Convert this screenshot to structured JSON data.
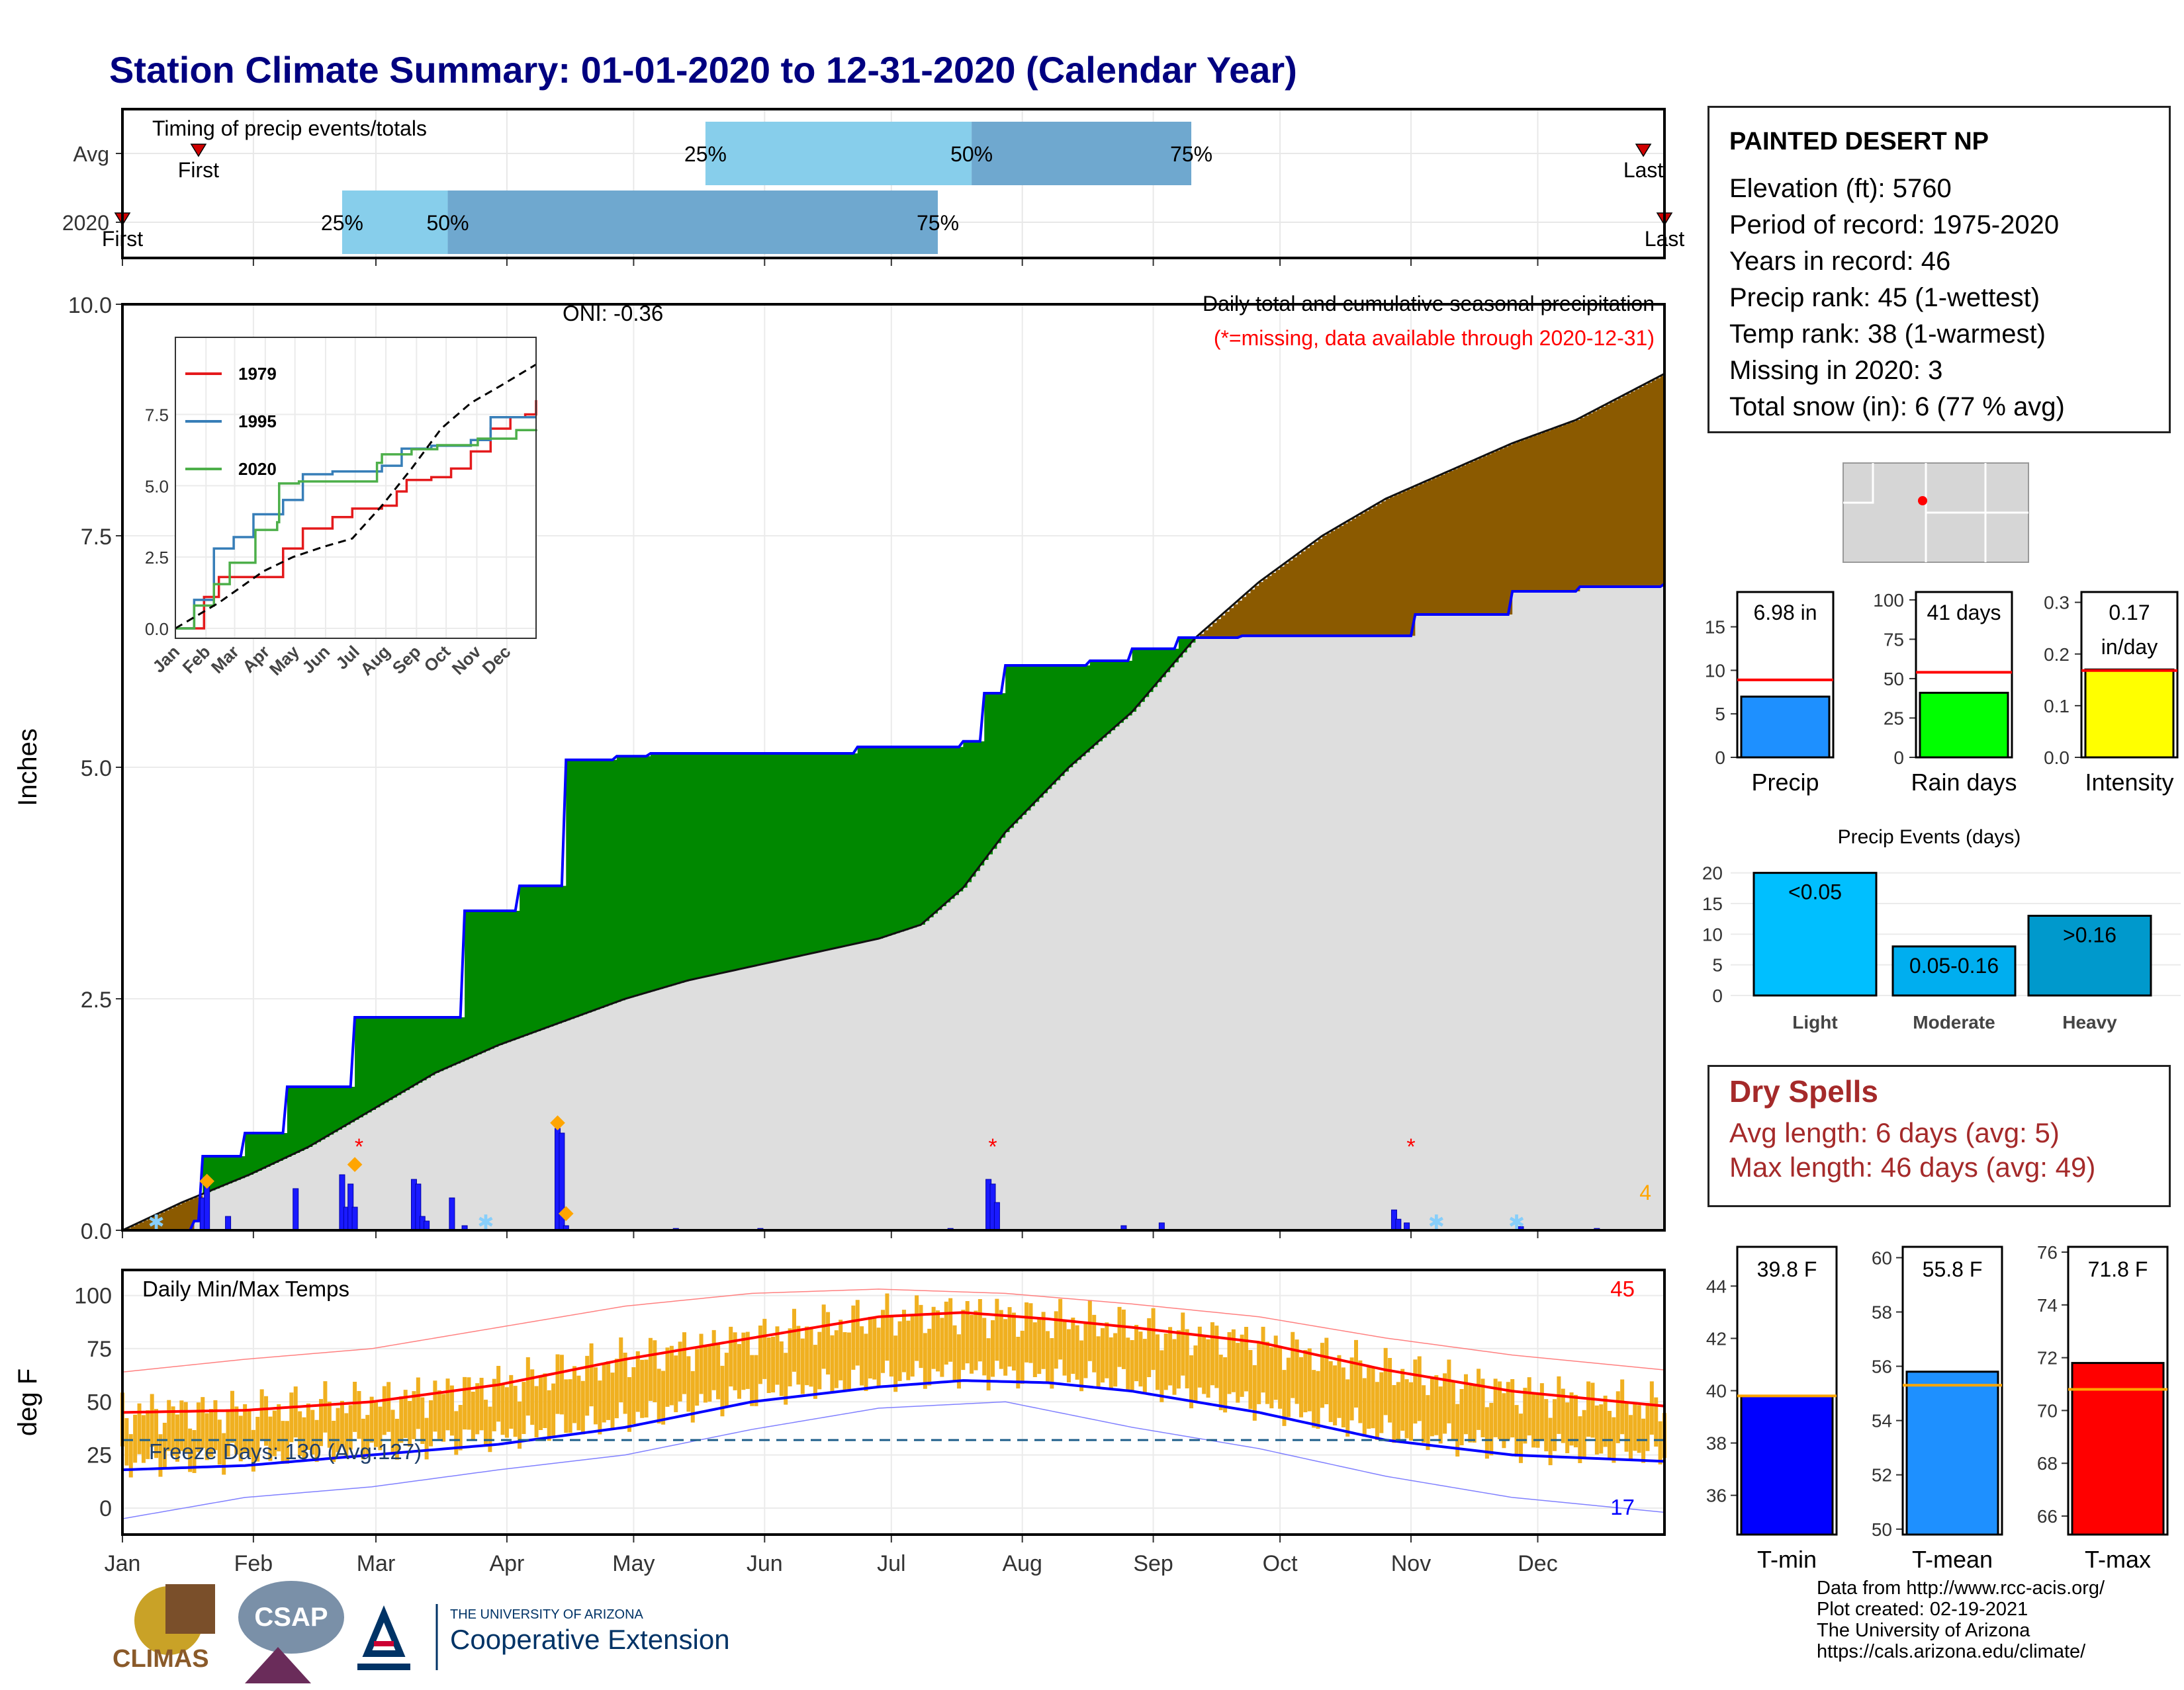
{
  "title": "Station Climate Summary: 01-01-2020 to 12-31-2020 (Calendar Year)",
  "timing": {
    "panel_title": "Timing of precip events/totals",
    "rows": [
      {
        "label": "Avg",
        "first_day": 19,
        "first_label": "First",
        "last_day": 361,
        "last_label": "Last",
        "p25": 139,
        "p50": 202,
        "p75": 254,
        "p25_label": "25%",
        "p50_label": "50%",
        "p75_label": "75%"
      },
      {
        "label": "2020",
        "first_day": 1,
        "first_label": "First",
        "last_day": 366,
        "last_label": "Last",
        "p25": 53,
        "p50": 78,
        "p75": 194,
        "p25_label": "25%",
        "p50_label": "50%",
        "p75_label": "75%"
      }
    ]
  },
  "main": {
    "title": "Daily total and cumulative seasonal precipitation",
    "subtitle": "(*=missing, data available through 2020-12-31)",
    "oni": "ONI: -0.36",
    "ylabel": "Inches",
    "ylim": [
      0,
      10
    ],
    "yticks": [
      "0.0",
      "2.5",
      "5.0",
      "7.5",
      "10.0"
    ],
    "missing_mark": "*",
    "snow_count": "4"
  },
  "months": [
    "Jan",
    "Feb",
    "Mar",
    "Apr",
    "May",
    "Jun",
    "Jul",
    "Aug",
    "Sep",
    "Oct",
    "Nov",
    "Dec"
  ],
  "inset": {
    "yticks": [
      "0.0",
      "2.5",
      "5.0",
      "7.5"
    ],
    "series": [
      {
        "name": "1979",
        "color": "#e41a1c"
      },
      {
        "name": "1995",
        "color": "#377eb8"
      },
      {
        "name": "2020",
        "color": "#4daf4a"
      }
    ]
  },
  "temps": {
    "title": "Daily Min/Max Temps",
    "ylabel": "deg F",
    "yticks": [
      "0",
      "25",
      "50",
      "75",
      "100"
    ],
    "freeze_label": "Freeze Days: 130 (Avg:127)",
    "hot_count": "45",
    "cold_count": "17"
  },
  "station": {
    "name": "PAINTED DESERT NP",
    "lines": [
      "Elevation (ft): 5760",
      "Period of record: 1975-2020",
      "Years in record: 46",
      "Precip rank: 45 (1-wettest)",
      "Temp rank: 38 (1-warmest)",
      "Missing in 2020: 3",
      "Total snow (in): 6 (77 % avg)"
    ]
  },
  "summary_bars": [
    {
      "name": "Precip",
      "value": 6.98,
      "value_label": "6.98 in",
      "avg": 8.9,
      "ymax": 19,
      "yticks": [
        "0",
        "5",
        "10",
        "15"
      ],
      "tick_values": [
        0,
        5,
        10,
        15
      ],
      "color": "#1e90ff"
    },
    {
      "name": "Rain days",
      "value": 41,
      "value_label": "41 days",
      "avg": 54,
      "ymax": 105,
      "yticks": [
        "0",
        "25",
        "50",
        "75",
        "100"
      ],
      "tick_values": [
        0,
        25,
        50,
        75,
        100
      ],
      "color": "#00ff00"
    },
    {
      "name": "Intensity",
      "value": 0.17,
      "value_label": "0.17\nin/day",
      "avg": 0.168,
      "ymax": 0.32,
      "yticks": [
        "0.0",
        "0.1",
        "0.2",
        "0.3"
      ],
      "tick_values": [
        0,
        0.1,
        0.2,
        0.3
      ],
      "color": "#ffff00"
    }
  ],
  "precip_events": {
    "title": "Precip Events (days)",
    "categories": [
      "Light",
      "Moderate",
      "Heavy"
    ],
    "labels": [
      "<0.05",
      "0.05-0.16",
      ">0.16"
    ],
    "values": [
      20,
      8,
      13
    ],
    "colors": [
      "#00bfff",
      "#00aeef",
      "#0099cc"
    ],
    "yticks": [
      "0",
      "5",
      "10",
      "15",
      "20"
    ]
  },
  "dry_spells": {
    "title": "Dry Spells",
    "lines": [
      "Avg length: 6 days (avg: 5)",
      "Max length: 46 days (avg: 49)"
    ]
  },
  "temp_bars": [
    {
      "name": "T-min",
      "value": 39.8,
      "value_label": "39.8 F",
      "avg": 39.8,
      "ymin": 34.5,
      "ymax": 45.5,
      "yticks": [
        "36",
        "38",
        "40",
        "42",
        "44"
      ],
      "tick_values": [
        36,
        38,
        40,
        42,
        44
      ],
      "color": "#0000ff"
    },
    {
      "name": "T-mean",
      "value": 55.8,
      "value_label": "55.8 F",
      "avg": 55.3,
      "ymin": 49.8,
      "ymax": 60.4,
      "yticks": [
        "50",
        "52",
        "54",
        "56",
        "58",
        "60"
      ],
      "tick_values": [
        50,
        52,
        54,
        56,
        58,
        60
      ],
      "color": "#1e90ff"
    },
    {
      "name": "T-max",
      "value": 71.8,
      "value_label": "71.8 F",
      "avg": 70.8,
      "ymin": 65.3,
      "ymax": 76.2,
      "yticks": [
        "66",
        "68",
        "70",
        "72",
        "74",
        "76"
      ],
      "tick_values": [
        66,
        68,
        70,
        72,
        74,
        76
      ],
      "color": "#ff0000"
    }
  ],
  "chart_data": {
    "type": "area",
    "title": "Daily total and cumulative seasonal precipitation",
    "xlabel": "",
    "ylabel": "Inches",
    "ylim": [
      0,
      10
    ],
    "grid": true,
    "x_unit": "day of year 2020",
    "cumulative_2020": {
      "x": [
        1,
        18,
        20,
        30,
        40,
        56,
        82,
        95,
        104,
        106,
        118,
        126,
        175,
        200,
        205,
        210,
        212,
        230,
        240,
        251,
        266,
        307,
        330,
        346,
        366
      ],
      "y": [
        0,
        0.1,
        0.8,
        1.05,
        1.55,
        2.3,
        3.45,
        3.72,
        3.72,
        5.08,
        5.12,
        5.15,
        5.22,
        5.28,
        5.8,
        6.1,
        6.1,
        6.15,
        6.28,
        6.4,
        6.42,
        6.65,
        6.9,
        6.95,
        6.98
      ]
    },
    "cumulative_avg": {
      "x": [
        1,
        15,
        31,
        45,
        60,
        75,
        90,
        105,
        120,
        135,
        150,
        165,
        180,
        190,
        200,
        210,
        225,
        240,
        255,
        270,
        285,
        300,
        315,
        330,
        345,
        366
      ],
      "y": [
        0,
        0.3,
        0.6,
        0.9,
        1.3,
        1.7,
        2.0,
        2.25,
        2.5,
        2.7,
        2.85,
        3.0,
        3.15,
        3.3,
        3.7,
        4.3,
        5.0,
        5.6,
        6.4,
        7.0,
        7.5,
        7.9,
        8.2,
        8.5,
        8.75,
        9.25
      ]
    },
    "daily_2020": {
      "x": [
        20,
        21,
        26,
        42,
        53,
        54,
        55,
        56,
        70,
        71,
        72,
        73,
        79,
        82,
        104,
        105,
        106,
        132,
        152,
        197,
        206,
        207,
        208,
        238,
        247,
        302,
        303,
        305,
        332,
        350
      ],
      "y": [
        0.35,
        0.55,
        0.15,
        0.45,
        0.6,
        0.25,
        0.5,
        0.25,
        0.55,
        0.5,
        0.15,
        0.1,
        0.35,
        0.05,
        1.1,
        1.05,
        0.05,
        0.02,
        0.02,
        0.02,
        0.55,
        0.5,
        0.3,
        0.05,
        0.08,
        0.22,
        0.12,
        0.08,
        0.04,
        0.02
      ]
    },
    "missing_days": [
      57,
      207,
      306
    ],
    "snow_days": [
      9,
      87,
      312,
      331
    ],
    "inset_series": [
      {
        "name": "1979",
        "x": [
          1,
          30,
          45,
          70,
          110,
          130,
          160,
          180,
          210,
          225,
          235,
          260,
          280,
          300,
          320,
          340,
          355,
          366
        ],
        "y": [
          0,
          1.1,
          1.8,
          1.8,
          2.8,
          3.5,
          3.9,
          4.2,
          4.3,
          4.8,
          5.2,
          5.3,
          5.6,
          6.2,
          7.0,
          7.4,
          7.5,
          8.0
        ]
      },
      {
        "name": "1995",
        "x": [
          1,
          20,
          40,
          60,
          80,
          110,
          130,
          160,
          180,
          210,
          230,
          260,
          280,
          300,
          320,
          366
        ],
        "y": [
          0,
          1.0,
          2.8,
          3.2,
          4.0,
          4.5,
          5.4,
          5.5,
          5.5,
          5.7,
          6.3,
          6.4,
          6.4,
          6.6,
          7.4,
          7.4
        ]
      },
      {
        "name": "2020",
        "x": [
          1,
          20,
          40,
          56,
          82,
          104,
          106,
          126,
          205,
          210,
          240,
          266,
          307,
          346,
          366
        ],
        "y": [
          0,
          0.8,
          1.55,
          2.3,
          3.45,
          3.72,
          5.08,
          5.15,
          5.8,
          6.1,
          6.28,
          6.42,
          6.65,
          6.95,
          6.98
        ]
      },
      {
        "name": "Avg",
        "x": [
          1,
          45,
          90,
          120,
          150,
          180,
          210,
          240,
          270,
          300,
          330,
          366
        ],
        "y": [
          0,
          0.9,
          2.0,
          2.5,
          2.85,
          3.15,
          4.3,
          5.6,
          7.0,
          7.9,
          8.5,
          9.25
        ]
      }
    ],
    "temperature": {
      "tmax": {
        "x": [
          1,
          30,
          60,
          90,
          120,
          150,
          180,
          200,
          220,
          240,
          270,
          300,
          330,
          366
        ],
        "y": [
          45,
          46,
          50,
          58,
          70,
          80,
          90,
          92,
          89,
          85,
          78,
          65,
          55,
          48
        ]
      },
      "tmin": {
        "x": [
          1,
          30,
          60,
          90,
          120,
          150,
          180,
          200,
          220,
          240,
          270,
          300,
          330,
          366
        ],
        "y": [
          18,
          20,
          25,
          30,
          38,
          50,
          57,
          60,
          59,
          55,
          45,
          32,
          25,
          22
        ]
      },
      "record_max": {
        "x": [
          1,
          30,
          60,
          90,
          120,
          150,
          180,
          210,
          240,
          270,
          300,
          330,
          366
        ],
        "y": [
          64,
          70,
          75,
          85,
          95,
          101,
          103,
          101,
          96,
          90,
          80,
          72,
          65
        ]
      },
      "record_min": {
        "x": [
          1,
          30,
          60,
          90,
          120,
          150,
          180,
          210,
          240,
          270,
          300,
          330,
          366
        ],
        "y": [
          -5,
          5,
          10,
          18,
          25,
          37,
          47,
          50,
          38,
          28,
          15,
          5,
          -2
        ]
      },
      "freeze_line": 32
    }
  }
}
